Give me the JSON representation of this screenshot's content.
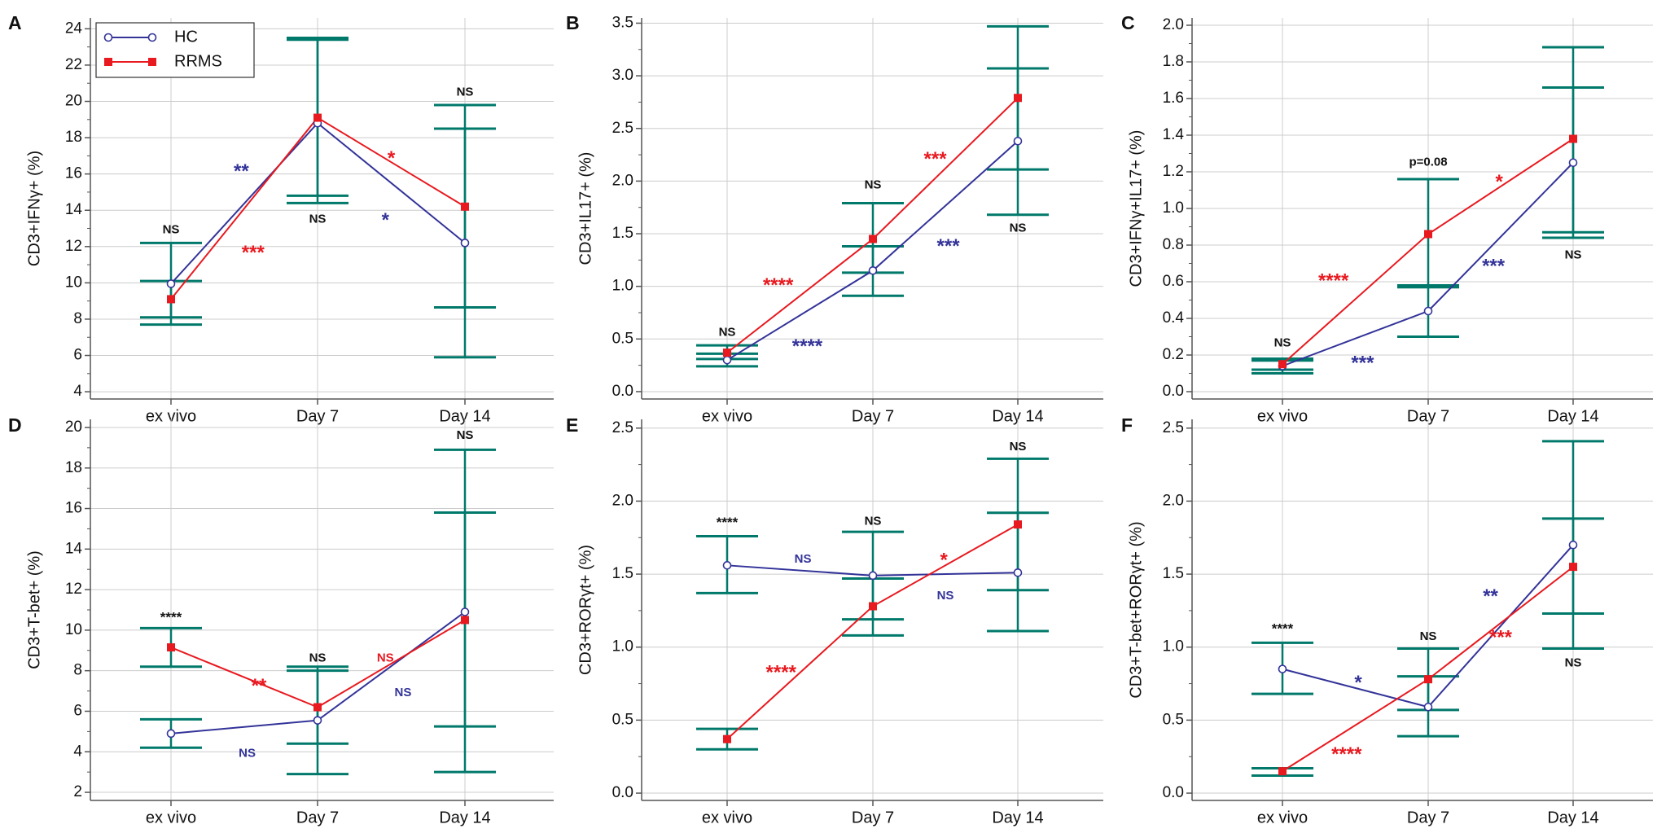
{
  "colors": {
    "hc": "#333399",
    "rrms": "#e8191f",
    "error_bar": "#00796b",
    "grid": "#cccccc",
    "axis": "#555555",
    "black": "#111111"
  },
  "legend": {
    "hc": "HC",
    "rrms": "RRMS"
  },
  "chart_data": [
    {
      "panel": "A",
      "type": "line",
      "title": "",
      "categories": [
        "ex vivo",
        "Day 7",
        "Day 14"
      ],
      "xlabel": "",
      "ylabel": "CD3+IFNγ+ (%)",
      "ylim": [
        3.6,
        24.6
      ],
      "yticks": [
        4,
        6,
        8,
        10,
        12,
        14,
        16,
        18,
        20,
        22,
        24
      ],
      "ytick_labels": [
        "4",
        "6",
        "8",
        "10",
        "12",
        "14",
        "16",
        "18",
        "20",
        "22",
        "24"
      ],
      "series": [
        {
          "name": "HC",
          "values": [
            9.95,
            18.8,
            12.2
          ],
          "err_low": [
            7.7,
            14.8,
            5.9
          ],
          "err_high": [
            12.2,
            23.4,
            18.5
          ]
        },
        {
          "name": "RRMS",
          "values": [
            9.1,
            19.1,
            14.2
          ],
          "err_low": [
            8.1,
            14.4,
            8.65
          ],
          "err_high": [
            10.1,
            23.5,
            19.8
          ]
        }
      ],
      "annotations": [
        {
          "text": "NS",
          "color": "black",
          "x": 0,
          "y": 12.9,
          "size": 15
        },
        {
          "text": "NS",
          "color": "black",
          "x": 1,
          "y": 13.5,
          "size": 15
        },
        {
          "text": "NS",
          "color": "black",
          "x": 2,
          "y": 20.5,
          "size": 15
        },
        {
          "text": "**",
          "color": "hc",
          "x": 0.48,
          "y": 16.1,
          "size": 24
        },
        {
          "text": "***",
          "color": "rrms",
          "x": 0.56,
          "y": 11.6,
          "size": 24
        },
        {
          "text": "*",
          "color": "hc",
          "x": 1.46,
          "y": 13.4,
          "size": 24
        },
        {
          "text": "*",
          "color": "rrms",
          "x": 1.5,
          "y": 16.8,
          "size": 24
        }
      ]
    },
    {
      "panel": "B",
      "type": "line",
      "title": "",
      "categories": [
        "ex vivo",
        "Day 7",
        "Day 14"
      ],
      "xlabel": "",
      "ylabel": "CD3+IL17+ (%)",
      "ylim": [
        -0.07,
        3.55
      ],
      "yticks": [
        0,
        0.5,
        1,
        1.5,
        2,
        2.5,
        3,
        3.5
      ],
      "ytick_labels": [
        "0.0",
        "0.5",
        "1.0",
        "1.5",
        "2.0",
        "2.5",
        "3.0",
        "3.5"
      ],
      "series": [
        {
          "name": "HC",
          "values": [
            0.3,
            1.15,
            2.38
          ],
          "err_low": [
            0.24,
            0.91,
            1.68
          ],
          "err_high": [
            0.36,
            1.38,
            3.07
          ]
        },
        {
          "name": "RRMS",
          "values": [
            0.37,
            1.45,
            2.79
          ],
          "err_low": [
            0.31,
            1.13,
            2.11
          ],
          "err_high": [
            0.44,
            1.79,
            3.47
          ]
        }
      ],
      "annotations": [
        {
          "text": "NS",
          "color": "black",
          "x": 0,
          "y": 0.56,
          "size": 15
        },
        {
          "text": "NS",
          "color": "black",
          "x": 1,
          "y": 1.96,
          "size": 15
        },
        {
          "text": "NS",
          "color": "black",
          "x": 2,
          "y": 1.55,
          "size": 15
        },
        {
          "text": "****",
          "color": "rrms",
          "x": 0.35,
          "y": 1.0,
          "size": 24
        },
        {
          "text": "****",
          "color": "hc",
          "x": 0.55,
          "y": 0.42,
          "size": 24
        },
        {
          "text": "***",
          "color": "rrms",
          "x": 1.43,
          "y": 2.2,
          "size": 24
        },
        {
          "text": "***",
          "color": "hc",
          "x": 1.52,
          "y": 1.37,
          "size": 24
        }
      ]
    },
    {
      "panel": "C",
      "type": "line",
      "title": "",
      "categories": [
        "ex vivo",
        "Day 7",
        "Day 14"
      ],
      "xlabel": "",
      "ylabel": "CD3+IFNγ+IL17+ (%)",
      "ylim": [
        -0.04,
        2.04
      ],
      "yticks": [
        0,
        0.2,
        0.4,
        0.6,
        0.8,
        1,
        1.2,
        1.4,
        1.6,
        1.8,
        2
      ],
      "ytick_labels": [
        "0.0",
        "0.2",
        "0.4",
        "0.6",
        "0.8",
        "1.0",
        "1.2",
        "1.4",
        "1.6",
        "1.8",
        "2.0"
      ],
      "series": [
        {
          "name": "HC",
          "values": [
            0.14,
            0.44,
            1.25
          ],
          "err_low": [
            0.1,
            0.3,
            0.84
          ],
          "err_high": [
            0.17,
            0.58,
            1.66
          ]
        },
        {
          "name": "RRMS",
          "values": [
            0.15,
            0.86,
            1.38
          ],
          "err_low": [
            0.12,
            0.57,
            0.87
          ],
          "err_high": [
            0.18,
            1.16,
            1.88
          ]
        }
      ],
      "annotations": [
        {
          "text": "NS",
          "color": "black",
          "x": 0,
          "y": 0.265,
          "size": 15
        },
        {
          "text": "p=0.08",
          "color": "black",
          "x": 1,
          "y": 1.25,
          "size": 15
        },
        {
          "text": "NS",
          "color": "black",
          "x": 2,
          "y": 0.745,
          "size": 15
        },
        {
          "text": "****",
          "color": "rrms",
          "x": 0.35,
          "y": 0.6,
          "size": 24
        },
        {
          "text": "***",
          "color": "hc",
          "x": 0.55,
          "y": 0.15,
          "size": 24
        },
        {
          "text": "*",
          "color": "rrms",
          "x": 1.49,
          "y": 1.14,
          "size": 24
        },
        {
          "text": "***",
          "color": "hc",
          "x": 1.45,
          "y": 0.68,
          "size": 24
        }
      ]
    },
    {
      "panel": "D",
      "type": "line",
      "title": "",
      "categories": [
        "ex vivo",
        "Day 7",
        "Day 14"
      ],
      "xlabel": "",
      "ylabel": "CD3+T-bet+ (%)",
      "ylim": [
        1.6,
        20.4
      ],
      "yticks": [
        2,
        4,
        6,
        8,
        10,
        12,
        14,
        16,
        18,
        20
      ],
      "ytick_labels": [
        "2",
        "4",
        "6",
        "8",
        "10",
        "12",
        "14",
        "16",
        "18",
        "20"
      ],
      "series": [
        {
          "name": "HC",
          "values": [
            4.9,
            5.55,
            10.9
          ],
          "err_low": [
            4.2,
            2.9,
            3.0
          ],
          "err_high": [
            5.6,
            8.2,
            18.9
          ]
        },
        {
          "name": "RRMS",
          "values": [
            9.15,
            6.2,
            10.5
          ],
          "err_low": [
            8.2,
            4.4,
            5.25
          ],
          "err_high": [
            10.1,
            8.0,
            15.8
          ]
        }
      ],
      "annotations": [
        {
          "text": "****",
          "color": "black",
          "x": 0,
          "y": 10.6,
          "size": 17
        },
        {
          "text": "NS",
          "color": "black",
          "x": 1,
          "y": 8.6,
          "size": 15
        },
        {
          "text": "NS",
          "color": "black",
          "x": 2,
          "y": 19.6,
          "size": 15
        },
        {
          "text": "**",
          "color": "rrms",
          "x": 0.6,
          "y": 7.2,
          "size": 24
        },
        {
          "text": "NS",
          "color": "hc",
          "x": 0.52,
          "y": 3.9,
          "size": 15
        },
        {
          "text": "NS",
          "color": "rrms",
          "x": 1.46,
          "y": 8.6,
          "size": 15
        },
        {
          "text": "NS",
          "color": "hc",
          "x": 1.58,
          "y": 6.9,
          "size": 15
        }
      ]
    },
    {
      "panel": "E",
      "type": "line",
      "title": "",
      "categories": [
        "ex vivo",
        "Day 7",
        "Day 14"
      ],
      "xlabel": "",
      "ylabel": "CD3+RORγt+ (%)",
      "ylim": [
        -0.05,
        2.56
      ],
      "yticks": [
        0,
        0.5,
        1,
        1.5,
        2,
        2.5
      ],
      "ytick_labels": [
        "0.0",
        "0.5",
        "1.0",
        "1.5",
        "2.0",
        "2.5"
      ],
      "series": [
        {
          "name": "HC",
          "values": [
            1.56,
            1.49,
            1.51
          ],
          "err_low": [
            1.37,
            1.19,
            1.11
          ],
          "err_high": [
            1.76,
            1.79,
            1.92
          ]
        },
        {
          "name": "RRMS",
          "values": [
            0.37,
            1.28,
            1.84
          ],
          "err_low": [
            0.3,
            1.08,
            1.39
          ],
          "err_high": [
            0.44,
            1.47,
            2.29
          ]
        }
      ],
      "annotations": [
        {
          "text": "****",
          "color": "black",
          "x": 0,
          "y": 1.85,
          "size": 17
        },
        {
          "text": "NS",
          "color": "black",
          "x": 1,
          "y": 1.86,
          "size": 15
        },
        {
          "text": "NS",
          "color": "black",
          "x": 2,
          "y": 2.37,
          "size": 15
        },
        {
          "text": "NS",
          "color": "hc",
          "x": 0.52,
          "y": 1.6,
          "size": 15
        },
        {
          "text": "****",
          "color": "rrms",
          "x": 0.37,
          "y": 0.82,
          "size": 24
        },
        {
          "text": "*",
          "color": "rrms",
          "x": 1.49,
          "y": 1.59,
          "size": 24
        },
        {
          "text": "NS",
          "color": "hc",
          "x": 1.5,
          "y": 1.35,
          "size": 15
        }
      ]
    },
    {
      "panel": "F",
      "type": "line",
      "title": "",
      "categories": [
        "ex vivo",
        "Day 7",
        "Day 14"
      ],
      "xlabel": "",
      "ylabel": "CD3+T-bet+RORγt+ (%)",
      "ylim": [
        -0.05,
        2.56
      ],
      "yticks": [
        0,
        0.5,
        1,
        1.5,
        2,
        2.5
      ],
      "ytick_labels": [
        "0.0",
        "0.5",
        "1.0",
        "1.5",
        "2.0",
        "2.5"
      ],
      "series": [
        {
          "name": "HC",
          "values": [
            0.85,
            0.59,
            1.7
          ],
          "err_low": [
            0.68,
            0.39,
            0.99
          ],
          "err_high": [
            1.03,
            0.8,
            2.41
          ]
        },
        {
          "name": "RRMS",
          "values": [
            0.15,
            0.78,
            1.55
          ],
          "err_low": [
            0.12,
            0.57,
            1.23
          ],
          "err_high": [
            0.17,
            0.99,
            1.88
          ]
        }
      ],
      "annotations": [
        {
          "text": "****",
          "color": "black",
          "x": 0,
          "y": 1.12,
          "size": 17
        },
        {
          "text": "NS",
          "color": "black",
          "x": 1,
          "y": 1.07,
          "size": 15
        },
        {
          "text": "NS",
          "color": "black",
          "x": 2,
          "y": 0.89,
          "size": 15
        },
        {
          "text": "*",
          "color": "hc",
          "x": 0.52,
          "y": 0.75,
          "size": 24
        },
        {
          "text": "****",
          "color": "rrms",
          "x": 0.44,
          "y": 0.26,
          "size": 24
        },
        {
          "text": "**",
          "color": "hc",
          "x": 1.43,
          "y": 1.34,
          "size": 24
        },
        {
          "text": "***",
          "color": "rrms",
          "x": 1.5,
          "y": 1.06,
          "size": 24
        }
      ]
    }
  ]
}
